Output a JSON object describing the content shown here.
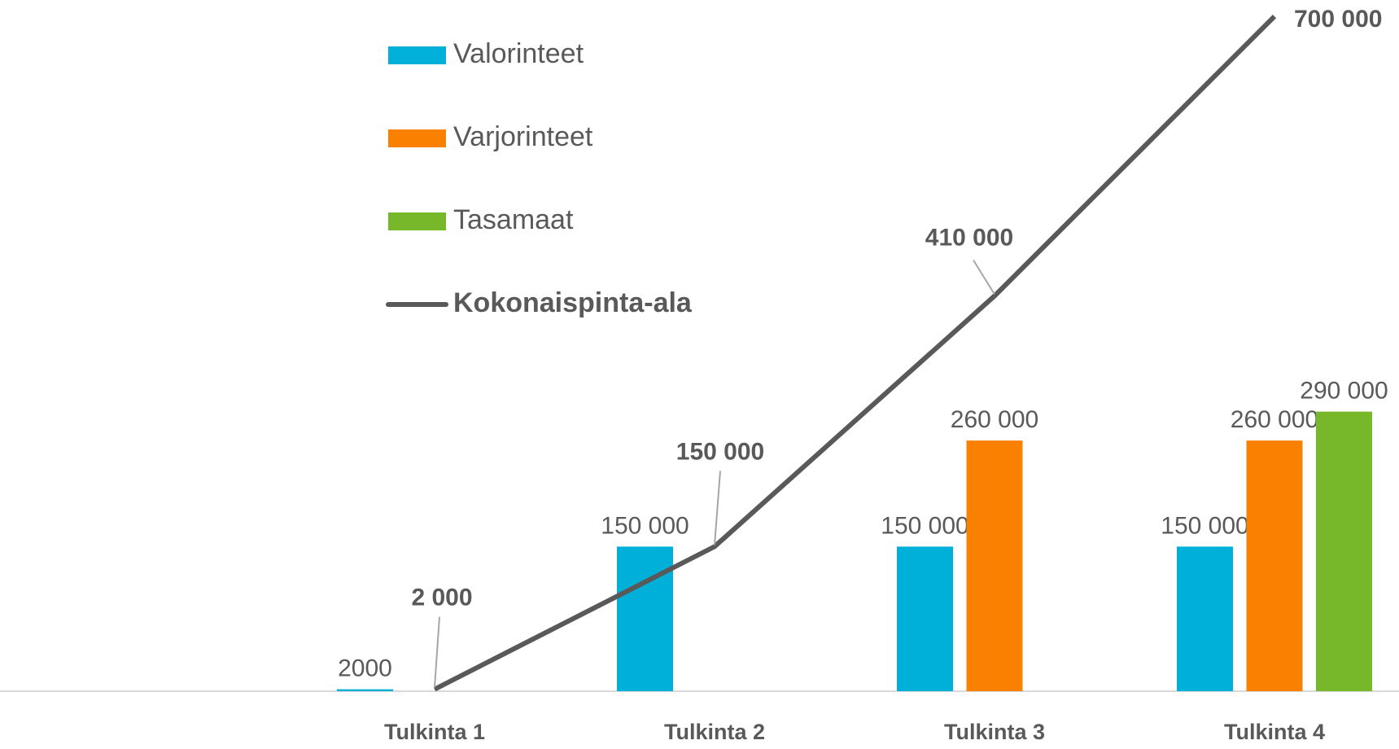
{
  "chart_data": {
    "type": "bar",
    "categories": [
      "Tulkinta 1",
      "Tulkinta 2",
      "Tulkinta 3",
      "Tulkinta 4"
    ],
    "ylim": [
      0,
      717000
    ],
    "series": [
      {
        "name": "Valorinteet",
        "color": "#00b0d8",
        "values": [
          2000,
          150000,
          150000,
          150000
        ],
        "value_labels": [
          "2000",
          "150 000",
          "150 000",
          "150 000"
        ]
      },
      {
        "name": "Varjorinteet",
        "color": "#f98000",
        "values": [
          null,
          null,
          260000,
          260000
        ],
        "value_labels": [
          null,
          null,
          "260 000",
          "260 000"
        ]
      },
      {
        "name": "Tasamaat",
        "color": "#77b82a",
        "values": [
          null,
          null,
          null,
          290000
        ],
        "value_labels": [
          null,
          null,
          null,
          "290 000"
        ]
      },
      {
        "name": "Kokonaispinta-ala",
        "type": "line",
        "color": "#595959",
        "values": [
          2000,
          150000,
          410000,
          700000
        ],
        "value_labels": [
          "2 000",
          "150 000",
          "410 000",
          "700 000"
        ]
      }
    ]
  }
}
